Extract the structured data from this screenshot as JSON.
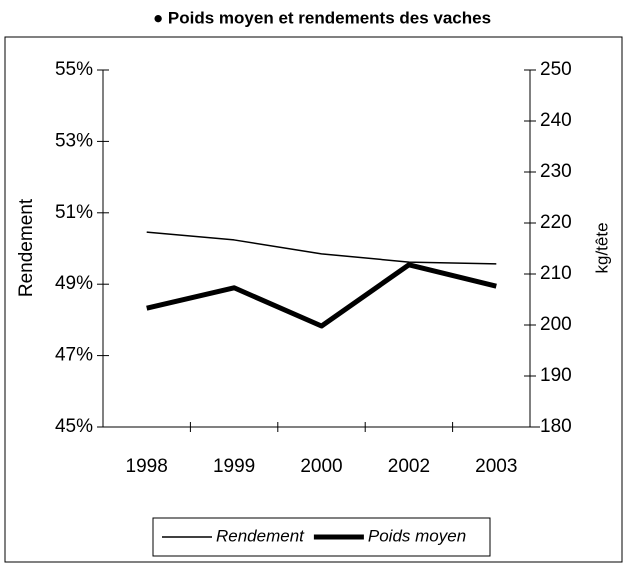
{
  "chart_data": {
    "type": "line",
    "title": "● Poids moyen et rendements des vaches",
    "y_label": "Rendement",
    "y2_label": "kg/tête",
    "categories": [
      "1998",
      "1999",
      "2000",
      "2002",
      "2003"
    ],
    "series": [
      {
        "name": "Rendement",
        "color": "#000000",
        "values": [
          50.46,
          50.24,
          49.85,
          49.62,
          49.57
        ]
      },
      {
        "name": "Poids moyen",
        "color": "#000000",
        "axis": "y2",
        "values": [
          203.3,
          207.3,
          199.8,
          211.8,
          207.6
        ]
      }
    ],
    "ylim": [
      45,
      55
    ],
    "yticks": [
      {
        "value": 45,
        "label": "45%"
      },
      {
        "value": 47,
        "label": "47%"
      },
      {
        "value": 49,
        "label": "49%"
      },
      {
        "value": 51,
        "label": "51%"
      },
      {
        "value": 53,
        "label": "53%"
      },
      {
        "value": 55,
        "label": "55%"
      }
    ],
    "y2lim": [
      180,
      250
    ],
    "y2ticks": [
      180,
      190,
      200,
      210,
      220,
      230,
      240,
      250
    ],
    "legend": "bottom"
  }
}
